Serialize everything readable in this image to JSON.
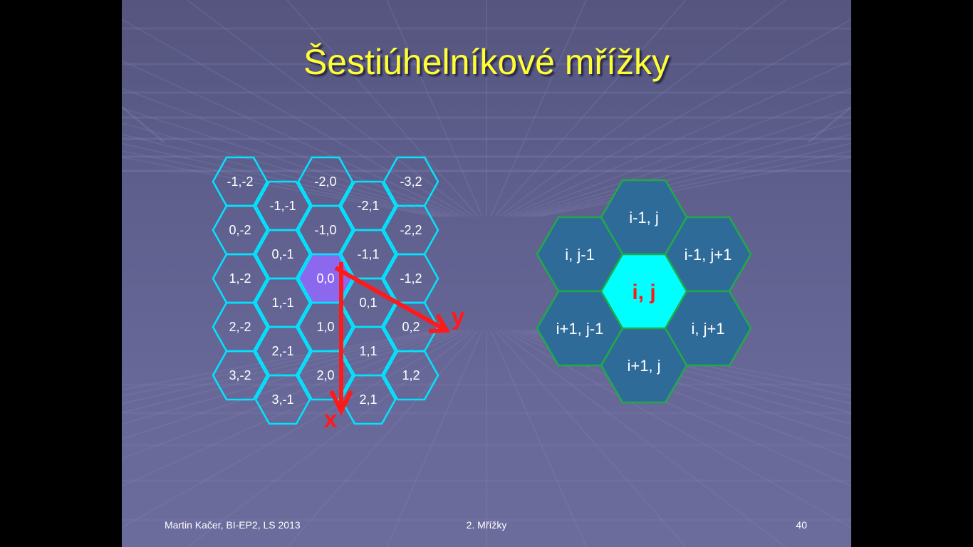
{
  "title": "Šestiúhelníkové mřížky",
  "footer": {
    "author": "Martin Kačer, BI-EP2, LS 2013",
    "topic": "2. Mřížky",
    "page": "40"
  },
  "grid": {
    "cells": [
      {
        "label": "-1,-2",
        "col": 0,
        "row": 0
      },
      {
        "label": "0,-2",
        "col": 0,
        "row": 1
      },
      {
        "label": "1,-2",
        "col": 0,
        "row": 2
      },
      {
        "label": "2,-2",
        "col": 0,
        "row": 3
      },
      {
        "label": "3,-2",
        "col": 0,
        "row": 4
      },
      {
        "label": "-1,-1",
        "col": 1,
        "row": 0
      },
      {
        "label": "0,-1",
        "col": 1,
        "row": 1
      },
      {
        "label": "1,-1",
        "col": 1,
        "row": 2
      },
      {
        "label": "2,-1",
        "col": 1,
        "row": 3
      },
      {
        "label": "3,-1",
        "col": 1,
        "row": 4
      },
      {
        "label": "-2,0",
        "col": 2,
        "row": 0
      },
      {
        "label": "-1,0",
        "col": 2,
        "row": 1
      },
      {
        "label": "0,0",
        "col": 2,
        "row": 2,
        "highlight": true
      },
      {
        "label": "1,0",
        "col": 2,
        "row": 3
      },
      {
        "label": "2,0",
        "col": 2,
        "row": 4
      },
      {
        "label": "-2,1",
        "col": 3,
        "row": 0
      },
      {
        "label": "-1,1",
        "col": 3,
        "row": 1
      },
      {
        "label": "0,1",
        "col": 3,
        "row": 2
      },
      {
        "label": "1,1",
        "col": 3,
        "row": 3
      },
      {
        "label": "2,1",
        "col": 3,
        "row": 4
      },
      {
        "label": "-3,2",
        "col": 4,
        "row": 0
      },
      {
        "label": "-2,2",
        "col": 4,
        "row": 1
      },
      {
        "label": "-1,2",
        "col": 4,
        "row": 2
      },
      {
        "label": "0,2",
        "col": 4,
        "row": 3
      },
      {
        "label": "1,2",
        "col": 4,
        "row": 4
      }
    ],
    "axis_x_label": "x",
    "axis_y_label": "y",
    "stroke_color": "#00e5ff",
    "highlight_color": "#8c68ee",
    "arrow_color": "#ff1a1a"
  },
  "neighborhood": {
    "center": "i, j",
    "neighbors": [
      {
        "label": "i-1, j",
        "pos": "top"
      },
      {
        "label": "i, j-1",
        "pos": "upper-left"
      },
      {
        "label": "i-1, j+1",
        "pos": "upper-right"
      },
      {
        "label": "i+1, j-1",
        "pos": "lower-left"
      },
      {
        "label": "i, j+1",
        "pos": "lower-right"
      },
      {
        "label": "i+1, j",
        "pos": "bottom"
      }
    ],
    "fill_color": "#2f6b99",
    "center_fill_color": "#00ffff",
    "stroke_color": "#1faa4a"
  }
}
